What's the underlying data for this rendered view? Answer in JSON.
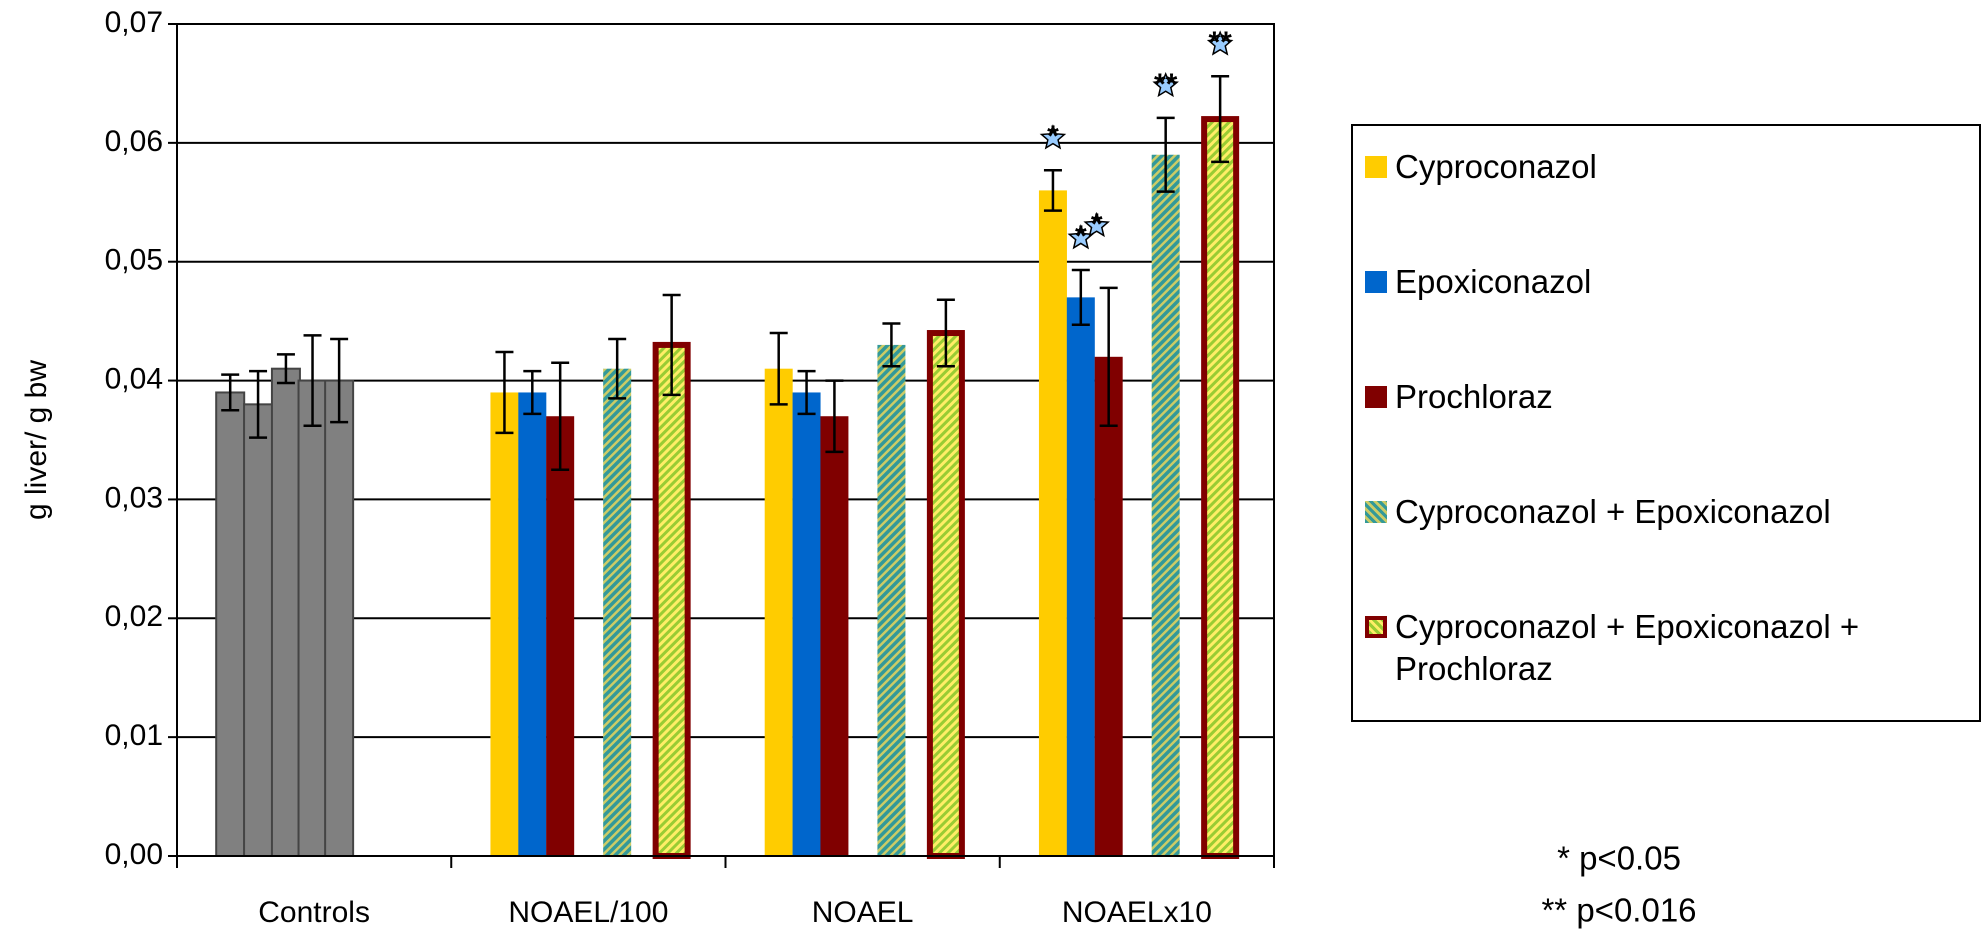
{
  "chart_data": {
    "type": "bar",
    "y_label": "g liver/ g bw",
    "categories": [
      "Controls",
      "NOAEL/100",
      "NOAEL",
      "NOAELx10"
    ],
    "control_color": "#808080",
    "series": [
      {
        "name": "Cyproconazol",
        "color": "#ffcc00",
        "values": [
          0.039,
          0.039,
          0.041,
          0.056
        ],
        "errors": [
          0.0015,
          0.0034,
          0.003,
          0.0017
        ]
      },
      {
        "name": "Epoxiconazol",
        "color": "#0066cc",
        "values": [
          0.038,
          0.039,
          0.039,
          0.047
        ],
        "errors": [
          0.0028,
          0.0018,
          0.0018,
          0.0023
        ]
      },
      {
        "name": "Prochloraz",
        "color": "#800000",
        "values": [
          0.041,
          0.037,
          0.037,
          0.042
        ],
        "errors": [
          0.0012,
          0.0045,
          0.003,
          0.0058
        ]
      },
      {
        "name": "Cyproconazol + Epoxiconazol",
        "color": "#339999",
        "values": [
          0.04,
          0.041,
          0.043,
          0.059
        ],
        "errors": [
          0.0038,
          0.0025,
          0.0018,
          0.0031
        ]
      },
      {
        "name": "Cyproconazol + Epoxiconazol + Prochloraz",
        "color": "#99cc33",
        "values": [
          0.04,
          0.043,
          0.044,
          0.062
        ],
        "errors": [
          0.0035,
          0.0042,
          0.0028,
          0.0036
        ]
      }
    ],
    "significance": [
      {
        "category": 3,
        "series": 0,
        "label": "*"
      },
      {
        "category": 3,
        "series": 1,
        "label": "*"
      },
      {
        "category": 3,
        "series": 2,
        "label": "*"
      },
      {
        "category": 3,
        "series": 3,
        "label": "**"
      },
      {
        "category": 3,
        "series": 4,
        "label": "**"
      }
    ],
    "footnotes": [
      "* p<0.05",
      "** p<0.016"
    ],
    "ylim": [
      0,
      0.07
    ],
    "yticks": [
      {
        "value": 0,
        "label": "0,00"
      },
      {
        "value": 0.01,
        "label": "0,01"
      },
      {
        "value": 0.02,
        "label": "0,02"
      },
      {
        "value": 0.03,
        "label": "0,03"
      },
      {
        "value": 0.04,
        "label": "0,04"
      },
      {
        "value": 0.05,
        "label": "0,05"
      },
      {
        "value": 0.06,
        "label": "0,06"
      },
      {
        "value": 0.07,
        "label": "0,07"
      }
    ],
    "grid": true
  }
}
